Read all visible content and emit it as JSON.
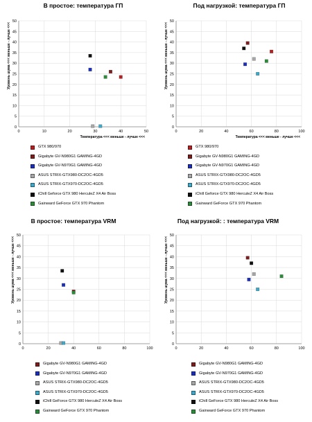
{
  "panels": [
    {
      "title": "В простое: температура ГП",
      "xlabel": "Температура <<< меньше - лучше <<<",
      "ylabel": "Уровень шума <<< меньше - лучше <<<",
      "legend": [
        {
          "label": "GTX 980/970",
          "color": "#b22222"
        },
        {
          "label": "Gigabyte GV-N980G1 GAMING-4GD",
          "color": "#7b1e1e"
        },
        {
          "label": "Gigabyte GV-N970G1 GAMING-4GD",
          "color": "#1c2fb8"
        },
        {
          "label": "ASUS STRIX-GTX980-DC2OC-4GD5",
          "color": "#a6a6a6"
        },
        {
          "label": "ASUS STRIX-GTX970-DC2OC-4GD5",
          "color": "#3fa7c8"
        },
        {
          "label": "iChill Geforce GTX 980 HerculeZ X4 Air Boss",
          "color": "#111111"
        },
        {
          "label": "Gainward GeForce GTX 970 Phantom",
          "color": "#2e8b3c"
        }
      ]
    },
    {
      "title": "Под нагрузкой: температура ГП",
      "xlabel": "Температура <<< меньше - лучше <<<",
      "ylabel": "Уровень шума <<< меньше - лучше <<<",
      "legend": [
        {
          "label": "GTX 980/970",
          "color": "#b22222"
        },
        {
          "label": "Gigabyte GV-N980G1 GAMING-4GD",
          "color": "#7b1e1e"
        },
        {
          "label": "Gigabyte GV-N970G1 GAMING-4GD",
          "color": "#1c2fb8"
        },
        {
          "label": "ASUS STRIX-GTX980-DC2OC-4GD5",
          "color": "#a6a6a6"
        },
        {
          "label": "ASUS STRIX-GTX970-DC2OC-4GD5",
          "color": "#3fa7c8"
        },
        {
          "label": "iChill Geforce GTX 980 HerculeZ X4 Air Boss",
          "color": "#111111"
        },
        {
          "label": "Gainward GeForce GTX 970 Phantom",
          "color": "#2e8b3c"
        }
      ]
    },
    {
      "title": "В простое: температура VRM",
      "xlabel": "Температура <<< меньше - лучше <<<",
      "ylabel": "Уровень шума <<< меньше - лучше <<<",
      "legend": [
        {
          "label": "Gigabyte GV-N980G1 GAMING-4GD",
          "color": "#7b1e1e"
        },
        {
          "label": "Gigabyte GV-N970G1 GAMING-4GD",
          "color": "#1c2fb8"
        },
        {
          "label": "ASUS STRIX-GTX980-DC2OC-4GD5",
          "color": "#a6a6a6"
        },
        {
          "label": "ASUS STRIX-GTX970-DC2OC-4GD5",
          "color": "#3fa7c8"
        },
        {
          "label": "iChill GeForce GTX 980 HerculeZ X4 Air Boss",
          "color": "#111111"
        },
        {
          "label": "Gainward GeForce GTX 970 Phantom",
          "color": "#2e8b3c"
        }
      ]
    },
    {
      "title": "Под нагрузкой: : температура VRM",
      "xlabel": "Температура <<< меньше - лучше <<<",
      "ylabel": "Уровень шума <<< меньше - лучше <<<",
      "legend": [
        {
          "label": "Gigabyte GV-N980G1 GAMING-4GD",
          "color": "#7b1e1e"
        },
        {
          "label": "Gigabyte GV-N970G1 GAMING-4GD",
          "color": "#1c2fb8"
        },
        {
          "label": "ASUS STRIX-GTX980-DC2OC-4GD5",
          "color": "#a6a6a6"
        },
        {
          "label": "ASUS STRIX-GTX970-DC2OC-4GD5",
          "color": "#3fa7c8"
        },
        {
          "label": "iChill GeForce GTX 980 HerculeZ X4 Air Boss",
          "color": "#111111"
        },
        {
          "label": "Gainward GeForce GTX 970 Phantom",
          "color": "#2e8b3c"
        }
      ]
    }
  ],
  "chart_data": [
    {
      "type": "scatter",
      "title": "В простое: температура ГП",
      "xlabel": "Температура <<< меньше - лучше <<<",
      "ylabel": "Уровень шума <<< меньше - лучше <<<",
      "xlim": [
        0,
        50
      ],
      "ylim": [
        0,
        50
      ],
      "xticks": [
        0,
        10,
        20,
        30,
        40,
        50
      ],
      "yticks": [
        0,
        5,
        10,
        15,
        20,
        25,
        30,
        35,
        40,
        45,
        50
      ],
      "grid": true,
      "legend_position": "bottom",
      "points": [
        {
          "series": "GTX 980/970",
          "x": 40,
          "y": 23.5,
          "color": "#b22222"
        },
        {
          "series": "Gigabyte GV-N980G1 GAMING-4GD",
          "x": 36,
          "y": 26,
          "color": "#7b1e1e"
        },
        {
          "series": "Gigabyte GV-N970G1 GAMING-4GD",
          "x": 28,
          "y": 27,
          "color": "#1c2fb8"
        },
        {
          "series": "ASUS STRIX-GTX980-DC2OC-4GD5",
          "x": 29,
          "y": 0.3,
          "color": "#a6a6a6"
        },
        {
          "series": "ASUS STRIX-GTX970-DC2OC-4GD5",
          "x": 32,
          "y": 0.3,
          "color": "#3fa7c8"
        },
        {
          "series": "iChill Geforce GTX 980 HerculeZ X4 Air Boss",
          "x": 28,
          "y": 33.5,
          "color": "#111111"
        },
        {
          "series": "Gainward GeForce GTX 970 Phantom",
          "x": 34,
          "y": 23.5,
          "color": "#2e8b3c"
        }
      ]
    },
    {
      "type": "scatter",
      "title": "Под нагрузкой: температура ГП",
      "xlabel": "Температура <<< меньше - лучше <<<",
      "ylabel": "Уровень шума <<< меньше - лучше <<<",
      "xlim": [
        0,
        100
      ],
      "ylim": [
        0,
        50
      ],
      "xticks": [
        0,
        20,
        40,
        60,
        80,
        100
      ],
      "yticks": [
        0,
        5,
        10,
        15,
        20,
        25,
        30,
        35,
        40,
        45,
        50
      ],
      "grid": true,
      "legend_position": "bottom",
      "points": [
        {
          "series": "GTX 980/970",
          "x": 76,
          "y": 35.5,
          "color": "#b22222"
        },
        {
          "series": "Gigabyte GV-N980G1 GAMING-4GD",
          "x": 57,
          "y": 39.5,
          "color": "#7b1e1e"
        },
        {
          "series": "Gigabyte GV-N970G1 GAMING-4GD",
          "x": 55,
          "y": 29.5,
          "color": "#1c2fb8"
        },
        {
          "series": "ASUS STRIX-GTX980-DC2OC-4GD5",
          "x": 62,
          "y": 32,
          "color": "#a6a6a6"
        },
        {
          "series": "ASUS STRIX-GTX970-DC2OC-4GD5",
          "x": 65,
          "y": 25,
          "color": "#3fa7c8"
        },
        {
          "series": "iChill Geforce GTX 980 HerculeZ X4 Air Boss",
          "x": 54,
          "y": 37,
          "color": "#111111"
        },
        {
          "series": "Gainward GeForce GTX 970 Phantom",
          "x": 72,
          "y": 31,
          "color": "#2e8b3c"
        }
      ]
    },
    {
      "type": "scatter",
      "title": "В простое: температура VRM",
      "xlabel": "Температура <<< меньше - лучше <<<",
      "ylabel": "Уровень шума <<< меньше - лучше <<<",
      "xlim": [
        0,
        100
      ],
      "ylim": [
        0,
        50
      ],
      "xticks": [
        0,
        20,
        40,
        60,
        80,
        100
      ],
      "yticks": [
        0,
        5,
        10,
        15,
        20,
        25,
        30,
        35,
        40,
        45,
        50
      ],
      "grid": true,
      "legend_position": "bottom",
      "points": [
        {
          "series": "Gigabyte GV-N980G1 GAMING-4GD",
          "x": 40,
          "y": 24,
          "color": "#7b1e1e"
        },
        {
          "series": "Gigabyte GV-N970G1 GAMING-4GD",
          "x": 32,
          "y": 27,
          "color": "#1c2fb8"
        },
        {
          "series": "ASUS STRIX-GTX980-DC2OC-4GD5",
          "x": 30,
          "y": 0.3,
          "color": "#a6a6a6"
        },
        {
          "series": "ASUS STRIX-GTX970-DC2OC-4GD5",
          "x": 32,
          "y": 0.3,
          "color": "#3fa7c8"
        },
        {
          "series": "iChill GeForce GTX 980 HerculeZ X4 Air Boss",
          "x": 31,
          "y": 33.5,
          "color": "#111111"
        },
        {
          "series": "Gainward GeForce GTX 970 Phantom",
          "x": 40,
          "y": 23.5,
          "color": "#2e8b3c"
        }
      ]
    },
    {
      "type": "scatter",
      "title": "Под нагрузкой: : температура VRM",
      "xlabel": "Температура <<< меньше - лучше <<<",
      "ylabel": "Уровень шума <<< меньше - лучше <<<",
      "xlim": [
        0,
        100
      ],
      "ylim": [
        0,
        50
      ],
      "xticks": [
        0,
        20,
        40,
        60,
        80,
        100
      ],
      "yticks": [
        0,
        5,
        10,
        15,
        20,
        25,
        30,
        35,
        40,
        45,
        50
      ],
      "grid": true,
      "legend_position": "bottom",
      "points": [
        {
          "series": "Gigabyte GV-N980G1 GAMING-4GD",
          "x": 57,
          "y": 39.5,
          "color": "#7b1e1e"
        },
        {
          "series": "Gigabyte GV-N970G1 GAMING-4GD",
          "x": 58,
          "y": 29.5,
          "color": "#1c2fb8"
        },
        {
          "series": "ASUS STRIX-GTX980-DC2OC-4GD5",
          "x": 62,
          "y": 32,
          "color": "#a6a6a6"
        },
        {
          "series": "ASUS STRIX-GTX970-DC2OC-4GD5",
          "x": 65,
          "y": 25,
          "color": "#3fa7c8"
        },
        {
          "series": "iChill GeForce GTX 980 HerculeZ X4 Air Boss",
          "x": 60,
          "y": 37,
          "color": "#111111"
        },
        {
          "series": "Gainward GeForce GTX 970 Phantom",
          "x": 84,
          "y": 31,
          "color": "#2e8b3c"
        }
      ]
    }
  ]
}
